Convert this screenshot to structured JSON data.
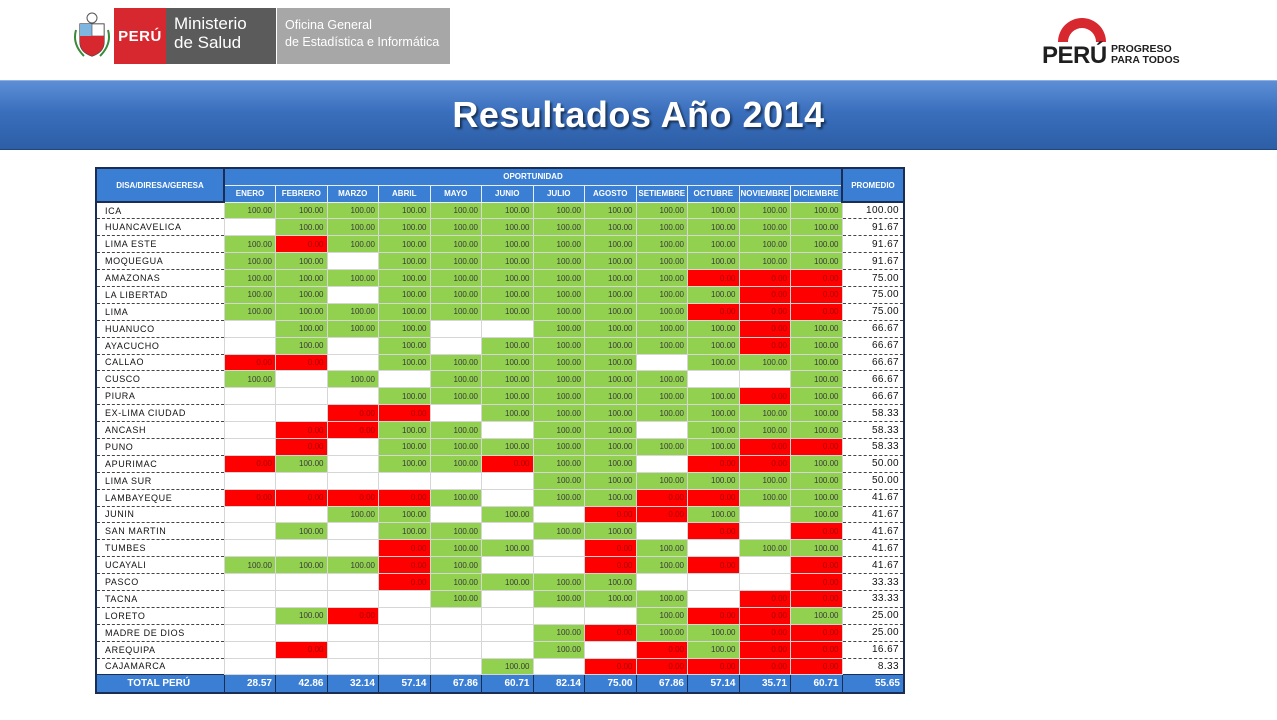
{
  "header": {
    "peru_label": "PERÚ",
    "ministry_line1": "Ministerio",
    "ministry_line2": "de Salud",
    "office_line1": "Oficina General",
    "office_line2": "de Estadística e Informática",
    "brand_peru": "PERÚ",
    "slogan_line1": "PROGRESO",
    "slogan_line2": "PARA TODOS"
  },
  "title": "Resultados Año 2014",
  "colors": {
    "banner": "#3a6fbd",
    "header_cell": "#3b7fd5",
    "good": "#92d050",
    "bad": "#ff0000"
  },
  "table": {
    "region_header": "DISA/DIRESA/GERESA",
    "group_header": "OPORTUNIDAD",
    "avg_header": "PROMEDIO",
    "months": [
      "ENERO",
      "FEBRERO",
      "MARZO",
      "ABRIL",
      "MAYO",
      "JUNIO",
      "JULIO",
      "AGOSTO",
      "SETIEMBRE",
      "OCTUBRE",
      "NOVIEMBRE",
      "DICIEMBRE"
    ],
    "rows": [
      {
        "region": "ICA",
        "avg": "100.00",
        "cells": [
          "100.00",
          "100.00",
          "100.00",
          "100.00",
          "100.00",
          "100.00",
          "100.00",
          "100.00",
          "100.00",
          "100.00",
          "100.00",
          "100.00"
        ]
      },
      {
        "region": "HUANCAVELICA",
        "avg": "91.67",
        "cells": [
          "",
          "100.00",
          "100.00",
          "100.00",
          "100.00",
          "100.00",
          "100.00",
          "100.00",
          "100.00",
          "100.00",
          "100.00",
          "100.00"
        ]
      },
      {
        "region": "LIMA ESTE",
        "avg": "91.67",
        "cells": [
          "100.00",
          "0.00",
          "100.00",
          "100.00",
          "100.00",
          "100.00",
          "100.00",
          "100.00",
          "100.00",
          "100.00",
          "100.00",
          "100.00"
        ]
      },
      {
        "region": "MOQUEGUA",
        "avg": "91.67",
        "cells": [
          "100.00",
          "100.00",
          "",
          "100.00",
          "100.00",
          "100.00",
          "100.00",
          "100.00",
          "100.00",
          "100.00",
          "100.00",
          "100.00"
        ]
      },
      {
        "region": "AMAZONAS",
        "avg": "75.00",
        "cells": [
          "100.00",
          "100.00",
          "100.00",
          "100.00",
          "100.00",
          "100.00",
          "100.00",
          "100.00",
          "100.00",
          "0.00",
          "0.00",
          "0.00"
        ]
      },
      {
        "region": "LA LIBERTAD",
        "avg": "75.00",
        "cells": [
          "100.00",
          "100.00",
          "",
          "100.00",
          "100.00",
          "100.00",
          "100.00",
          "100.00",
          "100.00",
          "100.00",
          "0.00",
          "0.00"
        ]
      },
      {
        "region": "LIMA",
        "avg": "75.00",
        "cells": [
          "100.00",
          "100.00",
          "100.00",
          "100.00",
          "100.00",
          "100.00",
          "100.00",
          "100.00",
          "100.00",
          "0.00",
          "0.00",
          "0.00"
        ]
      },
      {
        "region": "HUANUCO",
        "avg": "66.67",
        "cells": [
          "",
          "100.00",
          "100.00",
          "100.00",
          "",
          "",
          "100.00",
          "100.00",
          "100.00",
          "100.00",
          "0.00",
          "100.00"
        ]
      },
      {
        "region": "AYACUCHO",
        "avg": "66.67",
        "cells": [
          "",
          "100.00",
          "",
          "100.00",
          "",
          "100.00",
          "100.00",
          "100.00",
          "100.00",
          "100.00",
          "0.00",
          "100.00"
        ]
      },
      {
        "region": "CALLAO",
        "avg": "66.67",
        "cells": [
          "0.00",
          "0.00",
          "",
          "100.00",
          "100.00",
          "100.00",
          "100.00",
          "100.00",
          "",
          "100.00",
          "100.00",
          "100.00"
        ]
      },
      {
        "region": "CUSCO",
        "avg": "66.67",
        "cells": [
          "100.00",
          "",
          "100.00",
          "",
          "100.00",
          "100.00",
          "100.00",
          "100.00",
          "100.00",
          "",
          "",
          "100.00"
        ]
      },
      {
        "region": "PIURA",
        "avg": "66.67",
        "cells": [
          "",
          "",
          "",
          "100.00",
          "100.00",
          "100.00",
          "100.00",
          "100.00",
          "100.00",
          "100.00",
          "0.00",
          "100.00"
        ]
      },
      {
        "region": "EX-LIMA CIUDAD",
        "avg": "58.33",
        "cells": [
          "",
          "",
          "0.00",
          "0.00",
          "",
          "100.00",
          "100.00",
          "100.00",
          "100.00",
          "100.00",
          "100.00",
          "100.00"
        ]
      },
      {
        "region": "ANCASH",
        "avg": "58.33",
        "cells": [
          "",
          "0.00",
          "0.00",
          "100.00",
          "100.00",
          "",
          "100.00",
          "100.00",
          "",
          "100.00",
          "100.00",
          "100.00"
        ]
      },
      {
        "region": "PUNO",
        "avg": "58.33",
        "cells": [
          "",
          "0.00",
          "",
          "100.00",
          "100.00",
          "100.00",
          "100.00",
          "100.00",
          "100.00",
          "100.00",
          "0.00",
          "0.00"
        ]
      },
      {
        "region": "APURIMAC",
        "avg": "50.00",
        "cells": [
          "0.00",
          "100.00",
          "",
          "100.00",
          "100.00",
          "0.00",
          "100.00",
          "100.00",
          "",
          "0.00",
          "0.00",
          "100.00"
        ]
      },
      {
        "region": "LIMA SUR",
        "avg": "50.00",
        "cells": [
          "",
          "",
          "",
          "",
          "",
          "",
          "100.00",
          "100.00",
          "100.00",
          "100.00",
          "100.00",
          "100.00"
        ]
      },
      {
        "region": "LAMBAYEQUE",
        "avg": "41.67",
        "cells": [
          "0.00",
          "0.00",
          "0.00",
          "0.00",
          "100.00",
          "",
          "100.00",
          "100.00",
          "0.00",
          "0.00",
          "100.00",
          "100.00"
        ]
      },
      {
        "region": "JUNIN",
        "avg": "41.67",
        "cells": [
          "",
          "",
          "100.00",
          "100.00",
          "",
          "100.00",
          "",
          "0.00",
          "0.00",
          "100.00",
          "",
          "100.00"
        ]
      },
      {
        "region": "SAN MARTIN",
        "avg": "41.67",
        "cells": [
          "",
          "100.00",
          "",
          "100.00",
          "100.00",
          "",
          "100.00",
          "100.00",
          "",
          "0.00",
          "",
          "0.00"
        ]
      },
      {
        "region": "TUMBES",
        "avg": "41.67",
        "cells": [
          "",
          "",
          "",
          "0.00",
          "100.00",
          "100.00",
          "",
          "0.00",
          "100.00",
          "",
          "100.00",
          "100.00"
        ]
      },
      {
        "region": "UCAYALI",
        "avg": "41.67",
        "cells": [
          "100.00",
          "100.00",
          "100.00",
          "0.00",
          "100.00",
          "",
          "",
          "0.00",
          "100.00",
          "0.00",
          "",
          "0.00"
        ]
      },
      {
        "region": "PASCO",
        "avg": "33.33",
        "cells": [
          "",
          "",
          "",
          "0.00",
          "100.00",
          "100.00",
          "100.00",
          "100.00",
          "",
          "",
          "",
          "0.00"
        ]
      },
      {
        "region": "TACNA",
        "avg": "33.33",
        "cells": [
          "",
          "",
          "",
          "",
          "100.00",
          "",
          "100.00",
          "100.00",
          "100.00",
          "",
          "0.00",
          "0.00"
        ]
      },
      {
        "region": "LORETO",
        "avg": "25.00",
        "cells": [
          "",
          "100.00",
          "0.00",
          "",
          "",
          "",
          "",
          "",
          "100.00",
          "0.00",
          "0.00",
          "100.00"
        ]
      },
      {
        "region": "MADRE DE DIOS",
        "avg": "25.00",
        "cells": [
          "",
          "",
          "",
          "",
          "",
          "",
          "100.00",
          "0.00",
          "100.00",
          "100.00",
          "0.00",
          "0.00"
        ]
      },
      {
        "region": "AREQUIPA",
        "avg": "16.67",
        "cells": [
          "",
          "0.00",
          "",
          "",
          "",
          "",
          "100.00",
          "",
          "0.00",
          "100.00",
          "0.00",
          "0.00"
        ]
      },
      {
        "region": "CAJAMARCA",
        "avg": "8.33",
        "cells": [
          "",
          "",
          "",
          "",
          "",
          "100.00",
          "",
          "0.00",
          "0.00",
          "0.00",
          "0.00",
          "0.00"
        ]
      }
    ],
    "total": {
      "label": "TOTAL PERÚ",
      "values": [
        "28.57",
        "42.86",
        "32.14",
        "57.14",
        "67.86",
        "60.71",
        "82.14",
        "75.00",
        "67.86",
        "57.14",
        "35.71",
        "60.71"
      ],
      "avg": "55.65"
    }
  }
}
